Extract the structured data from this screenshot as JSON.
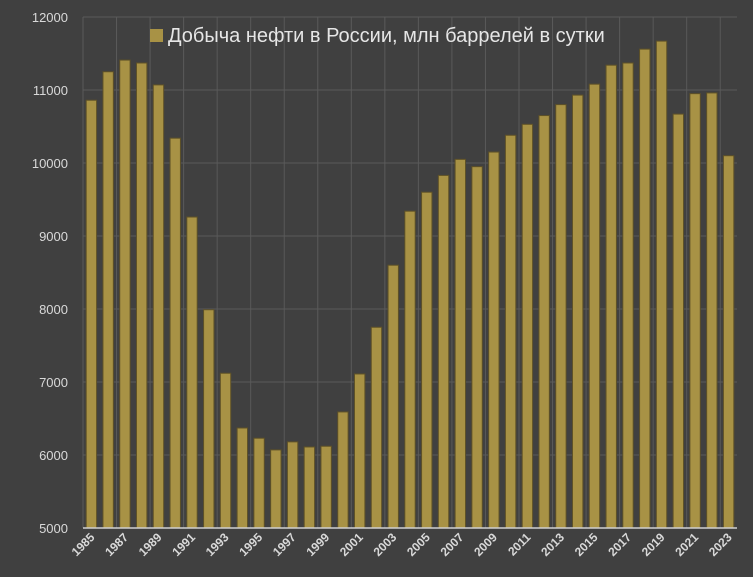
{
  "chart_data": {
    "type": "bar",
    "title": "",
    "legend": [
      "Добыча нефти в России, млн баррелей в сутки"
    ],
    "legend_position": "top-inside",
    "xlabel": "",
    "ylabel": "",
    "ylim": [
      5000,
      12000
    ],
    "yticks": [
      5000,
      6000,
      7000,
      8000,
      9000,
      10000,
      11000,
      12000
    ],
    "xticks_shown": [
      "1985",
      "1987",
      "1989",
      "1991",
      "1993",
      "1995",
      "1997",
      "1999",
      "2001",
      "2003",
      "2005",
      "2007",
      "2009",
      "2011",
      "2013",
      "2015",
      "2017",
      "2019",
      "2021",
      "2023"
    ],
    "grid": true,
    "categories": [
      "1985",
      "1986",
      "1987",
      "1988",
      "1989",
      "1990",
      "1991",
      "1992",
      "1993",
      "1994",
      "1995",
      "1996",
      "1997",
      "1998",
      "1999",
      "2000",
      "2001",
      "2002",
      "2003",
      "2004",
      "2005",
      "2006",
      "2007",
      "2008",
      "2009",
      "2010",
      "2011",
      "2012",
      "2013",
      "2014",
      "2015",
      "2016",
      "2017",
      "2018",
      "2019",
      "2020",
      "2021",
      "2022",
      "2023"
    ],
    "series": [
      {
        "name": "Добыча нефти в России, млн баррелей в сутки",
        "color": "#A89245",
        "values": [
          10860,
          11250,
          11410,
          11370,
          11070,
          10340,
          9260,
          7990,
          7120,
          6370,
          6230,
          6070,
          6180,
          6110,
          6120,
          6590,
          7110,
          7750,
          8600,
          9340,
          9600,
          9830,
          10050,
          9950,
          10150,
          10380,
          10530,
          10650,
          10800,
          10930,
          11080,
          11340,
          11370,
          11560,
          11670,
          10670,
          10950,
          10960,
          10100
        ]
      }
    ]
  },
  "colors": {
    "background": "#404040",
    "bar_fill": "#A89245",
    "bar_edge": "#5e5127",
    "grid": "#5a5a5a",
    "axis": "#d0d0d0",
    "text": "#d9d9d9"
  }
}
